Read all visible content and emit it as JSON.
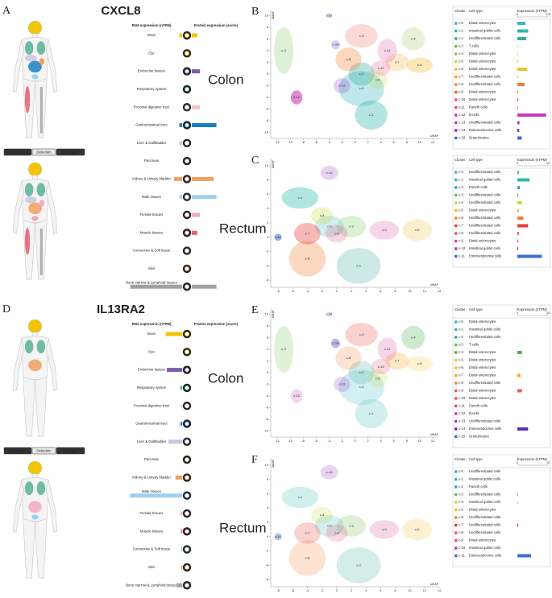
{
  "figure": {
    "gene_panels": [
      {
        "letter": "A",
        "gene": "CXCL8",
        "rna_header": "RNA expression (nTPM)",
        "protein_header": "Protein expression (score)",
        "buttons": [
          "Expression",
          "Detection",
          "All organs"
        ],
        "organs": [
          {
            "name": "Brain",
            "color": "#f2c500",
            "rna": 5,
            "protein": 10
          },
          {
            "name": "Eye",
            "color": "#f2c500",
            "rna": 0,
            "protein": 0
          },
          {
            "name": "Endocrine tissues",
            "color": "#7b5ea7",
            "rna": 0,
            "protein": 15
          },
          {
            "name": "Respiratory system",
            "color": "#4cae8f",
            "rna": 0,
            "protein": 0
          },
          {
            "name": "Proximal digestive tract",
            "color": "#f2c4c4",
            "rna": 0,
            "protein": 15
          },
          {
            "name": "Gastrointestinal tract",
            "color": "#1a7fc1",
            "rna": 5,
            "protein": 45
          },
          {
            "name": "Liver & Gallbladder",
            "color": "#c9c5de",
            "rna": 5,
            "protein": 0
          },
          {
            "name": "Pancreas",
            "color": "#8ab370",
            "rna": 0,
            "protein": 0
          },
          {
            "name": "Kidney & Urinary bladder",
            "color": "#f0a060",
            "rna": 15,
            "protein": 40
          },
          {
            "name": "Male tissues",
            "color": "#9fd0f0",
            "rna": 5,
            "protein": 45
          },
          {
            "name": "Female tissues",
            "color": "#f2a8c4",
            "rna": 0,
            "protein": 15
          },
          {
            "name": "Muscle tissues",
            "color": "#e06070",
            "rna": 0,
            "protein": 10
          },
          {
            "name": "Connective & Soft tissue",
            "color": "#a8c8d8",
            "rna": 0,
            "protein": 0
          },
          {
            "name": "Skin",
            "color": "#e0a070",
            "rna": 0,
            "protein": 0
          },
          {
            "name": "Bone marrow & Lymphoid tissues",
            "color": "#a0a0a0",
            "rna": 95,
            "protein": 45
          }
        ]
      },
      {
        "letter": "D",
        "gene": "IL13RA2",
        "rna_header": "RNA expression (nTPM)",
        "protein_header": "Protein expression (score)",
        "buttons": [
          "Expression",
          "Detection",
          "All organs"
        ],
        "organs": [
          {
            "name": "Brain",
            "color": "#f2c500",
            "rna": 30,
            "protein": 0
          },
          {
            "name": "Eye",
            "color": "#f2c500",
            "rna": 0,
            "protein": 0
          },
          {
            "name": "Endocrine tissues",
            "color": "#7b5ea7",
            "rna": 28,
            "protein": 0
          },
          {
            "name": "Respiratory system",
            "color": "#4cae8f",
            "rna": 3,
            "protein": 0
          },
          {
            "name": "Proximal digestive tract",
            "color": "#f2c4c4",
            "rna": 2,
            "protein": 0
          },
          {
            "name": "Gastrointestinal tract",
            "color": "#1a7fc1",
            "rna": 3,
            "protein": 0
          },
          {
            "name": "Liver & Gallbladder",
            "color": "#c9c5de",
            "rna": 25,
            "protein": 0
          },
          {
            "name": "Pancreas",
            "color": "#8ab370",
            "rna": 0,
            "protein": 0
          },
          {
            "name": "Kidney & Urinary bladder",
            "color": "#f0a060",
            "rna": 12,
            "protein": 0
          },
          {
            "name": "Male tissues",
            "color": "#9fd0f0",
            "rna": 95,
            "protein": 0
          },
          {
            "name": "Female tissues",
            "color": "#f2a8c4",
            "rna": 3,
            "protein": 0
          },
          {
            "name": "Muscle tissues",
            "color": "#e06070",
            "rna": 2,
            "protein": 0
          },
          {
            "name": "Connective & Soft tissue",
            "color": "#a8c8d8",
            "rna": 2,
            "protein": 0
          },
          {
            "name": "Skin",
            "color": "#e0a070",
            "rna": 2,
            "protein": 0
          },
          {
            "name": "Bone marrow & Lymphoid tissues",
            "color": "#a0a0a0",
            "rna": 12,
            "protein": 0
          }
        ]
      }
    ],
    "umap_panels": [
      {
        "letter": "B",
        "tissue": "Colon",
        "axis_label": "UMAP",
        "xlim": [
          -13,
          13
        ],
        "ylim": [
          -11,
          11
        ],
        "xticks": [
          -12,
          -10,
          -8,
          -6,
          -4,
          -2,
          0,
          2,
          4,
          6,
          8,
          10,
          12
        ],
        "yticks": [
          -10,
          -8,
          -6,
          -4,
          -2,
          0,
          2,
          4,
          6,
          8,
          10
        ],
        "table": {
          "headers": [
            "Cluster",
            "Cell type",
            "Expression (nTPM)"
          ],
          "xlim": [
            0,
            170
          ],
          "xticks": [
            0,
            170
          ],
          "clusters": [
            {
              "id": "c-0",
              "cell_type": "Distal enterocytes",
              "color": "#3bb5c4",
              "value": 45
            },
            {
              "id": "c-1",
              "cell_type": "Intestinal goblet cells",
              "color": "#2fb8a8",
              "value": 60
            },
            {
              "id": "c-2",
              "cell_type": "Undifferentiated cells",
              "color": "#39a9a0",
              "value": 50
            },
            {
              "id": "c-3",
              "cell_type": "T-cells",
              "color": "#6cc24a",
              "value": 2
            },
            {
              "id": "c-4",
              "cell_type": "Distal enterocytes",
              "color": "#8bc34a",
              "value": 2
            },
            {
              "id": "c-5",
              "cell_type": "Distal enterocytes",
              "color": "#c5d93e",
              "value": 5
            },
            {
              "id": "c-6",
              "cell_type": "Distal enterocytes",
              "color": "#f0c030",
              "value": 55
            },
            {
              "id": "c-7",
              "cell_type": "Undifferentiated cells",
              "color": "#f5a623",
              "value": 3
            },
            {
              "id": "c-8",
              "cell_type": "Undifferentiated cells",
              "color": "#f08030",
              "value": 40
            },
            {
              "id": "c-9",
              "cell_type": "Distal enterocytes",
              "color": "#e85a4f",
              "value": 3
            },
            {
              "id": "c-10",
              "cell_type": "Distal enterocytes",
              "color": "#e8507a",
              "value": 5
            },
            {
              "id": "c-11",
              "cell_type": "Paneth cells",
              "color": "#d946a0",
              "value": 3
            },
            {
              "id": "c-12",
              "cell_type": "B-cells",
              "color": "#c83ab8",
              "value": 160
            },
            {
              "id": "c-13",
              "cell_type": "Undifferentiated cells",
              "color": "#9b40c8",
              "value": 12
            },
            {
              "id": "c-14",
              "cell_type": "Enteroendocrine cells",
              "color": "#6a3fd0",
              "value": 10
            },
            {
              "id": "c-15",
              "cell_type": "Granulocytes",
              "color": "#3a6fd0",
              "value": 25
            }
          ]
        }
      },
      {
        "letter": "C",
        "tissue": "Rectum",
        "axis_label": "UMAP",
        "xlim": [
          -9,
          14
        ],
        "ylim": [
          -7,
          11
        ],
        "xticks": [
          -8,
          -6,
          -4,
          -2,
          0,
          2,
          4,
          6,
          8,
          10,
          12,
          14
        ],
        "yticks": [
          -6,
          -4,
          -2,
          0,
          2,
          4,
          6,
          8,
          10
        ],
        "table": {
          "headers": [
            "Cluster",
            "Cell type",
            "Expression (nTPM)"
          ],
          "xlim": [
            0,
            10
          ],
          "xticks": [
            0,
            10
          ],
          "clusters": [
            {
              "id": "c-0",
              "cell_type": "Undifferentiated cells",
              "color": "#3bb5c4",
              "value": 0.5
            },
            {
              "id": "c-1",
              "cell_type": "Intestinal goblet cells",
              "color": "#2fb8a8",
              "value": 4
            },
            {
              "id": "c-2",
              "cell_type": "Paneth cells",
              "color": "#39a9a0",
              "value": 0.8
            },
            {
              "id": "c-3",
              "cell_type": "Undifferentiated cells",
              "color": "#6cc24a",
              "value": 0.3
            },
            {
              "id": "c-4",
              "cell_type": "Undifferentiated cells",
              "color": "#c5d93e",
              "value": 1.5
            },
            {
              "id": "c-5",
              "cell_type": "Distal enterocytes",
              "color": "#f0c030",
              "value": 0.5
            },
            {
              "id": "c-6",
              "cell_type": "Undifferentiated cells",
              "color": "#f08030",
              "value": 2
            },
            {
              "id": "c-7",
              "cell_type": "Undifferentiated cells",
              "color": "#e83a3a",
              "value": 3.5
            },
            {
              "id": "c-8",
              "cell_type": "Undifferentiated cells",
              "color": "#e8507a",
              "value": 0.5
            },
            {
              "id": "c-9",
              "cell_type": "Distal enterocytes",
              "color": "#d946a0",
              "value": 0.3
            },
            {
              "id": "c-10",
              "cell_type": "Intestinal goblet cells",
              "color": "#9b40c8",
              "value": 0.3
            },
            {
              "id": "c-11",
              "cell_type": "Enteroendocrine cells",
              "color": "#3a6fd0",
              "value": 8
            }
          ]
        }
      },
      {
        "letter": "E",
        "tissue": "Colon",
        "axis_label": "UMAP",
        "xlim": [
          -13,
          13
        ],
        "ylim": [
          -11,
          11
        ],
        "xticks": [
          -12,
          -10,
          -8,
          -6,
          -4,
          -2,
          0,
          2,
          4,
          6,
          8,
          10,
          12
        ],
        "yticks": [
          -10,
          -8,
          -6,
          -4,
          -2,
          0,
          2,
          4,
          6,
          8,
          10
        ],
        "table": {
          "headers": [
            "Cluster",
            "Cell type",
            "Expression (nTPM)"
          ],
          "xlim": [
            0,
            10
          ],
          "xticks": [
            0,
            10
          ],
          "clusters": [
            {
              "id": "c-0",
              "cell_type": "Distal enterocytes",
              "color": "#3bb5c4",
              "value": 0
            },
            {
              "id": "c-1",
              "cell_type": "Intestinal goblet cells",
              "color": "#2fb8a8",
              "value": 0
            },
            {
              "id": "c-2",
              "cell_type": "Undifferentiated cells",
              "color": "#39a9a0",
              "value": 0
            },
            {
              "id": "c-3",
              "cell_type": "T-cells",
              "color": "#6cc24a",
              "value": 0
            },
            {
              "id": "c-4",
              "cell_type": "Distal enterocytes",
              "color": "#4caf50",
              "value": 1.5
            },
            {
              "id": "c-5",
              "cell_type": "Distal enterocytes",
              "color": "#c5d93e",
              "value": 0
            },
            {
              "id": "c-6",
              "cell_type": "Distal enterocytes",
              "color": "#f0c030",
              "value": 0
            },
            {
              "id": "c-7",
              "cell_type": "Distal enterocytes",
              "color": "#f5a623",
              "value": 1
            },
            {
              "id": "c-8",
              "cell_type": "Undifferentiated cells",
              "color": "#f08030",
              "value": 0
            },
            {
              "id": "c-9",
              "cell_type": "Distal enterocytes",
              "color": "#e85a4f",
              "value": 1.5
            },
            {
              "id": "c-10",
              "cell_type": "Distal enterocytes",
              "color": "#e8507a",
              "value": 0
            },
            {
              "id": "c-11",
              "cell_type": "Paneth cells",
              "color": "#d946a0",
              "value": 0
            },
            {
              "id": "c-12",
              "cell_type": "B-cells",
              "color": "#c83ab8",
              "value": 0
            },
            {
              "id": "c-13",
              "cell_type": "Undifferentiated cells",
              "color": "#9b40c8",
              "value": 0
            },
            {
              "id": "c-14",
              "cell_type": "Enteroendocrine cells",
              "color": "#5a2fc0",
              "value": 3.5
            },
            {
              "id": "c-15",
              "cell_type": "Granulocytes",
              "color": "#3a6fd0",
              "value": 0
            }
          ]
        }
      },
      {
        "letter": "F",
        "tissue": "Rectum",
        "axis_label": "UMAP",
        "xlim": [
          -9,
          14
        ],
        "ylim": [
          -7,
          11
        ],
        "xticks": [
          -8,
          -6,
          -4,
          -2,
          0,
          2,
          4,
          6,
          8,
          10,
          12,
          14
        ],
        "yticks": [
          -6,
          -4,
          -2,
          0,
          2,
          4,
          6,
          8,
          10
        ],
        "table": {
          "headers": [
            "Cluster",
            "Cell type",
            "Expression (nTPM)"
          ],
          "xlim": [
            0,
            10
          ],
          "xticks": [
            0,
            10
          ],
          "clusters": [
            {
              "id": "c-0",
              "cell_type": "Undifferentiated cells",
              "color": "#3bb5c4",
              "value": 0
            },
            {
              "id": "c-1",
              "cell_type": "Intestinal goblet cells",
              "color": "#2fb8a8",
              "value": 0
            },
            {
              "id": "c-2",
              "cell_type": "Paneth cells",
              "color": "#39a9a0",
              "value": 0
            },
            {
              "id": "c-3",
              "cell_type": "Undifferentiated cells",
              "color": "#6cc24a",
              "value": 0.2
            },
            {
              "id": "c-4",
              "cell_type": "Intestinal goblet cells",
              "color": "#c5d93e",
              "value": 0.2
            },
            {
              "id": "c-5",
              "cell_type": "Distal enterocytes",
              "color": "#f0c030",
              "value": 0
            },
            {
              "id": "c-6",
              "cell_type": "Undifferentiated cells",
              "color": "#f08030",
              "value": 0
            },
            {
              "id": "c-7",
              "cell_type": "Undifferentiated cells",
              "color": "#e83a3a",
              "value": 0.3
            },
            {
              "id": "c-8",
              "cell_type": "Undifferentiated cells",
              "color": "#e8507a",
              "value": 0
            },
            {
              "id": "c-9",
              "cell_type": "Distal enterocytes",
              "color": "#d946a0",
              "value": 0
            },
            {
              "id": "c-10",
              "cell_type": "Intestinal goblet cells",
              "color": "#9b40c8",
              "value": 0
            },
            {
              "id": "c-11",
              "cell_type": "Enteroendocrine cells",
              "color": "#3a6fd0",
              "value": 4.5
            }
          ]
        }
      }
    ]
  }
}
